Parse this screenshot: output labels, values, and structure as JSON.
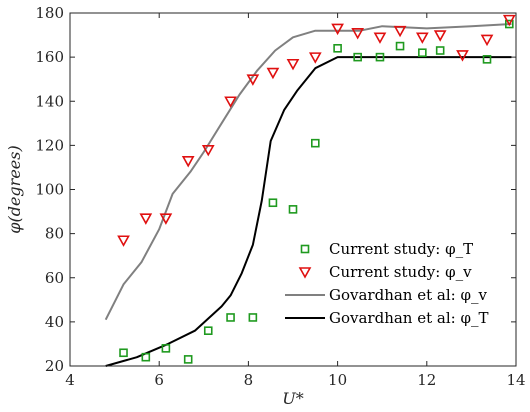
{
  "chart_data": {
    "type": "scatter",
    "title": "",
    "xlabel": "U*",
    "ylabel": "φ(degrees)",
    "xlim": [
      4,
      14
    ],
    "ylim": [
      20,
      180
    ],
    "xticks": [
      4,
      6,
      8,
      10,
      12,
      14
    ],
    "yticks": [
      20,
      40,
      60,
      80,
      100,
      120,
      140,
      160,
      180
    ],
    "grid": false,
    "legend_position": "bottom-right",
    "series": [
      {
        "name": "Current study: φ_T",
        "kind": "marker-square",
        "color": "#1f9a1f",
        "points": [
          [
            5.2,
            26
          ],
          [
            5.7,
            24
          ],
          [
            6.15,
            28
          ],
          [
            6.65,
            23
          ],
          [
            7.1,
            36
          ],
          [
            7.6,
            42
          ],
          [
            8.1,
            42
          ],
          [
            8.55,
            94
          ],
          [
            9.0,
            91
          ],
          [
            9.5,
            121
          ],
          [
            10.0,
            164
          ],
          [
            10.45,
            160
          ],
          [
            10.95,
            160
          ],
          [
            11.4,
            165
          ],
          [
            11.9,
            162
          ],
          [
            12.3,
            163
          ],
          [
            13.35,
            159
          ],
          [
            13.85,
            175
          ]
        ]
      },
      {
        "name": "Current study: φ_v",
        "kind": "marker-triangle-down",
        "color": "#e01010",
        "points": [
          [
            5.2,
            77
          ],
          [
            5.7,
            87
          ],
          [
            6.15,
            87
          ],
          [
            6.65,
            113
          ],
          [
            7.1,
            118
          ],
          [
            7.6,
            140
          ],
          [
            8.1,
            150
          ],
          [
            8.55,
            153
          ],
          [
            9.0,
            157
          ],
          [
            9.5,
            160
          ],
          [
            10.0,
            173
          ],
          [
            10.45,
            171
          ],
          [
            10.95,
            169
          ],
          [
            11.4,
            172
          ],
          [
            11.9,
            169
          ],
          [
            12.3,
            170
          ],
          [
            12.8,
            161
          ],
          [
            13.35,
            168
          ],
          [
            13.85,
            177
          ]
        ]
      },
      {
        "name": "Govardhan et al: φ_v",
        "kind": "line",
        "color": "#808080",
        "points": [
          [
            4.8,
            41
          ],
          [
            5.2,
            57
          ],
          [
            5.6,
            67
          ],
          [
            6.0,
            82
          ],
          [
            6.3,
            98
          ],
          [
            6.7,
            108
          ],
          [
            7.0,
            117
          ],
          [
            7.4,
            130
          ],
          [
            7.8,
            143
          ],
          [
            8.2,
            154
          ],
          [
            8.6,
            163
          ],
          [
            9.0,
            169
          ],
          [
            9.5,
            172
          ],
          [
            10.0,
            172
          ],
          [
            10.5,
            172
          ],
          [
            11.0,
            174
          ],
          [
            12.0,
            173
          ],
          [
            13.0,
            174
          ],
          [
            13.9,
            175
          ]
        ]
      },
      {
        "name": "Govardhan et al: φ_T",
        "kind": "line",
        "color": "#000000",
        "points": [
          [
            4.8,
            20
          ],
          [
            5.5,
            24
          ],
          [
            6.2,
            30
          ],
          [
            6.8,
            36
          ],
          [
            7.4,
            47
          ],
          [
            7.6,
            52
          ],
          [
            7.85,
            62
          ],
          [
            8.1,
            75
          ],
          [
            8.3,
            95
          ],
          [
            8.5,
            122
          ],
          [
            8.8,
            136
          ],
          [
            9.1,
            145
          ],
          [
            9.5,
            155
          ],
          [
            10.0,
            160
          ],
          [
            11.0,
            160
          ],
          [
            12.0,
            160
          ],
          [
            13.0,
            160
          ],
          [
            13.9,
            160
          ]
        ]
      }
    ]
  }
}
